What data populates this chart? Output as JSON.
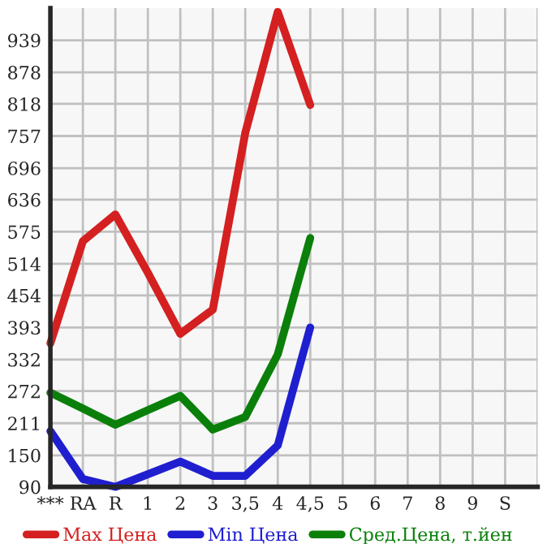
{
  "chart_data": {
    "type": "line",
    "categories": [
      "***",
      "RA",
      "R",
      "1",
      "2",
      "3",
      "3,5",
      "4",
      "4,5",
      "5",
      "6",
      "7",
      "8",
      "9",
      "S"
    ],
    "series": [
      {
        "name": "Max Цена",
        "color": "#d42020",
        "values": [
          363,
          557,
          608,
          497,
          381,
          427,
          763,
          993,
          816,
          null,
          null,
          null,
          null,
          null,
          null
        ]
      },
      {
        "name": "Min Цена",
        "color": "#1f1fd0",
        "values": [
          196,
          105,
          90,
          114,
          138,
          111,
          111,
          169,
          393,
          null,
          null,
          null,
          null,
          null,
          null
        ]
      },
      {
        "name": "Сред.Цена, т.йен",
        "color": "#0a800a",
        "values": [
          269,
          239,
          208,
          236,
          263,
          199,
          223,
          342,
          563,
          null,
          null,
          null,
          null,
          null,
          null
        ]
      }
    ],
    "ylim": [
      90,
      1000
    ],
    "yticks": [
      90,
      150,
      211,
      272,
      332,
      393,
      454,
      514,
      575,
      636,
      696,
      757,
      818,
      878,
      939
    ],
    "grid": true,
    "legend": "bottom",
    "marker": "none",
    "line_style": "solid"
  }
}
